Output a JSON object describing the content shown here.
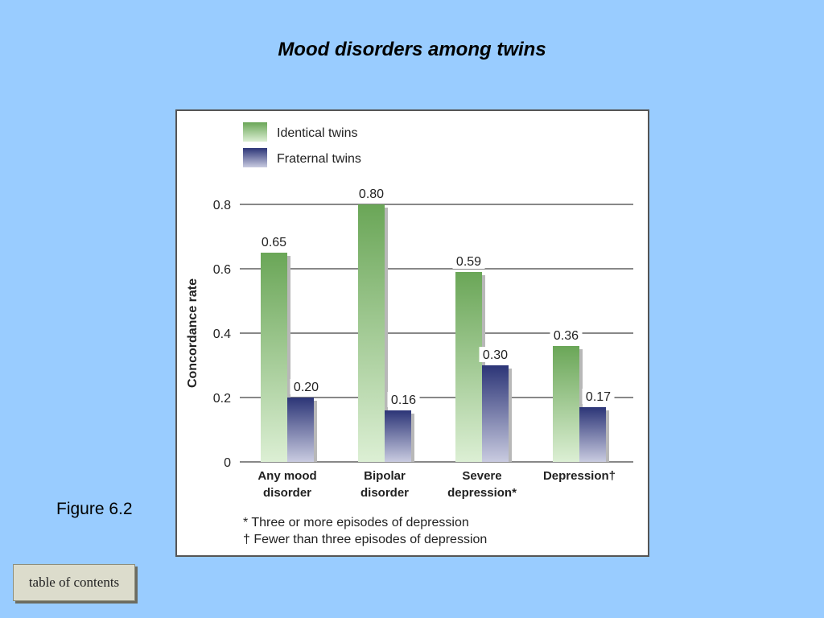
{
  "page": {
    "title": "Mood disorders among twins",
    "figure_label": "Figure 6.2",
    "toc_label": "table of contents"
  },
  "chart_data": {
    "type": "bar",
    "categories": [
      [
        "Any mood",
        "disorder"
      ],
      [
        "Bipolar",
        "disorder"
      ],
      [
        "Severe",
        "depression*"
      ],
      [
        "Depression†"
      ]
    ],
    "series": [
      {
        "name": "Identical twins",
        "values": [
          0.65,
          0.8,
          0.59,
          0.36
        ],
        "labels": [
          "0.65",
          "0.80",
          "0.59",
          "0.36"
        ],
        "color": "#6ea85a"
      },
      {
        "name": "Fraternal twins",
        "values": [
          0.2,
          0.16,
          0.3,
          0.17
        ],
        "labels": [
          "0.20",
          "0.16",
          "0.30",
          "0.17"
        ],
        "color": "#2e3878"
      }
    ],
    "ylabel": "Concordance rate",
    "ylim": [
      0,
      0.8
    ],
    "yticks": [
      0,
      0.2,
      0.4,
      0.6,
      0.8
    ],
    "ytick_labels": [
      "0",
      "0.2",
      "0.4",
      "0.6",
      "0.8"
    ],
    "grid": true,
    "legend_position": "top-left",
    "footnotes": [
      "* Three or more episodes of depression",
      "† Fewer than three episodes of depression"
    ]
  }
}
